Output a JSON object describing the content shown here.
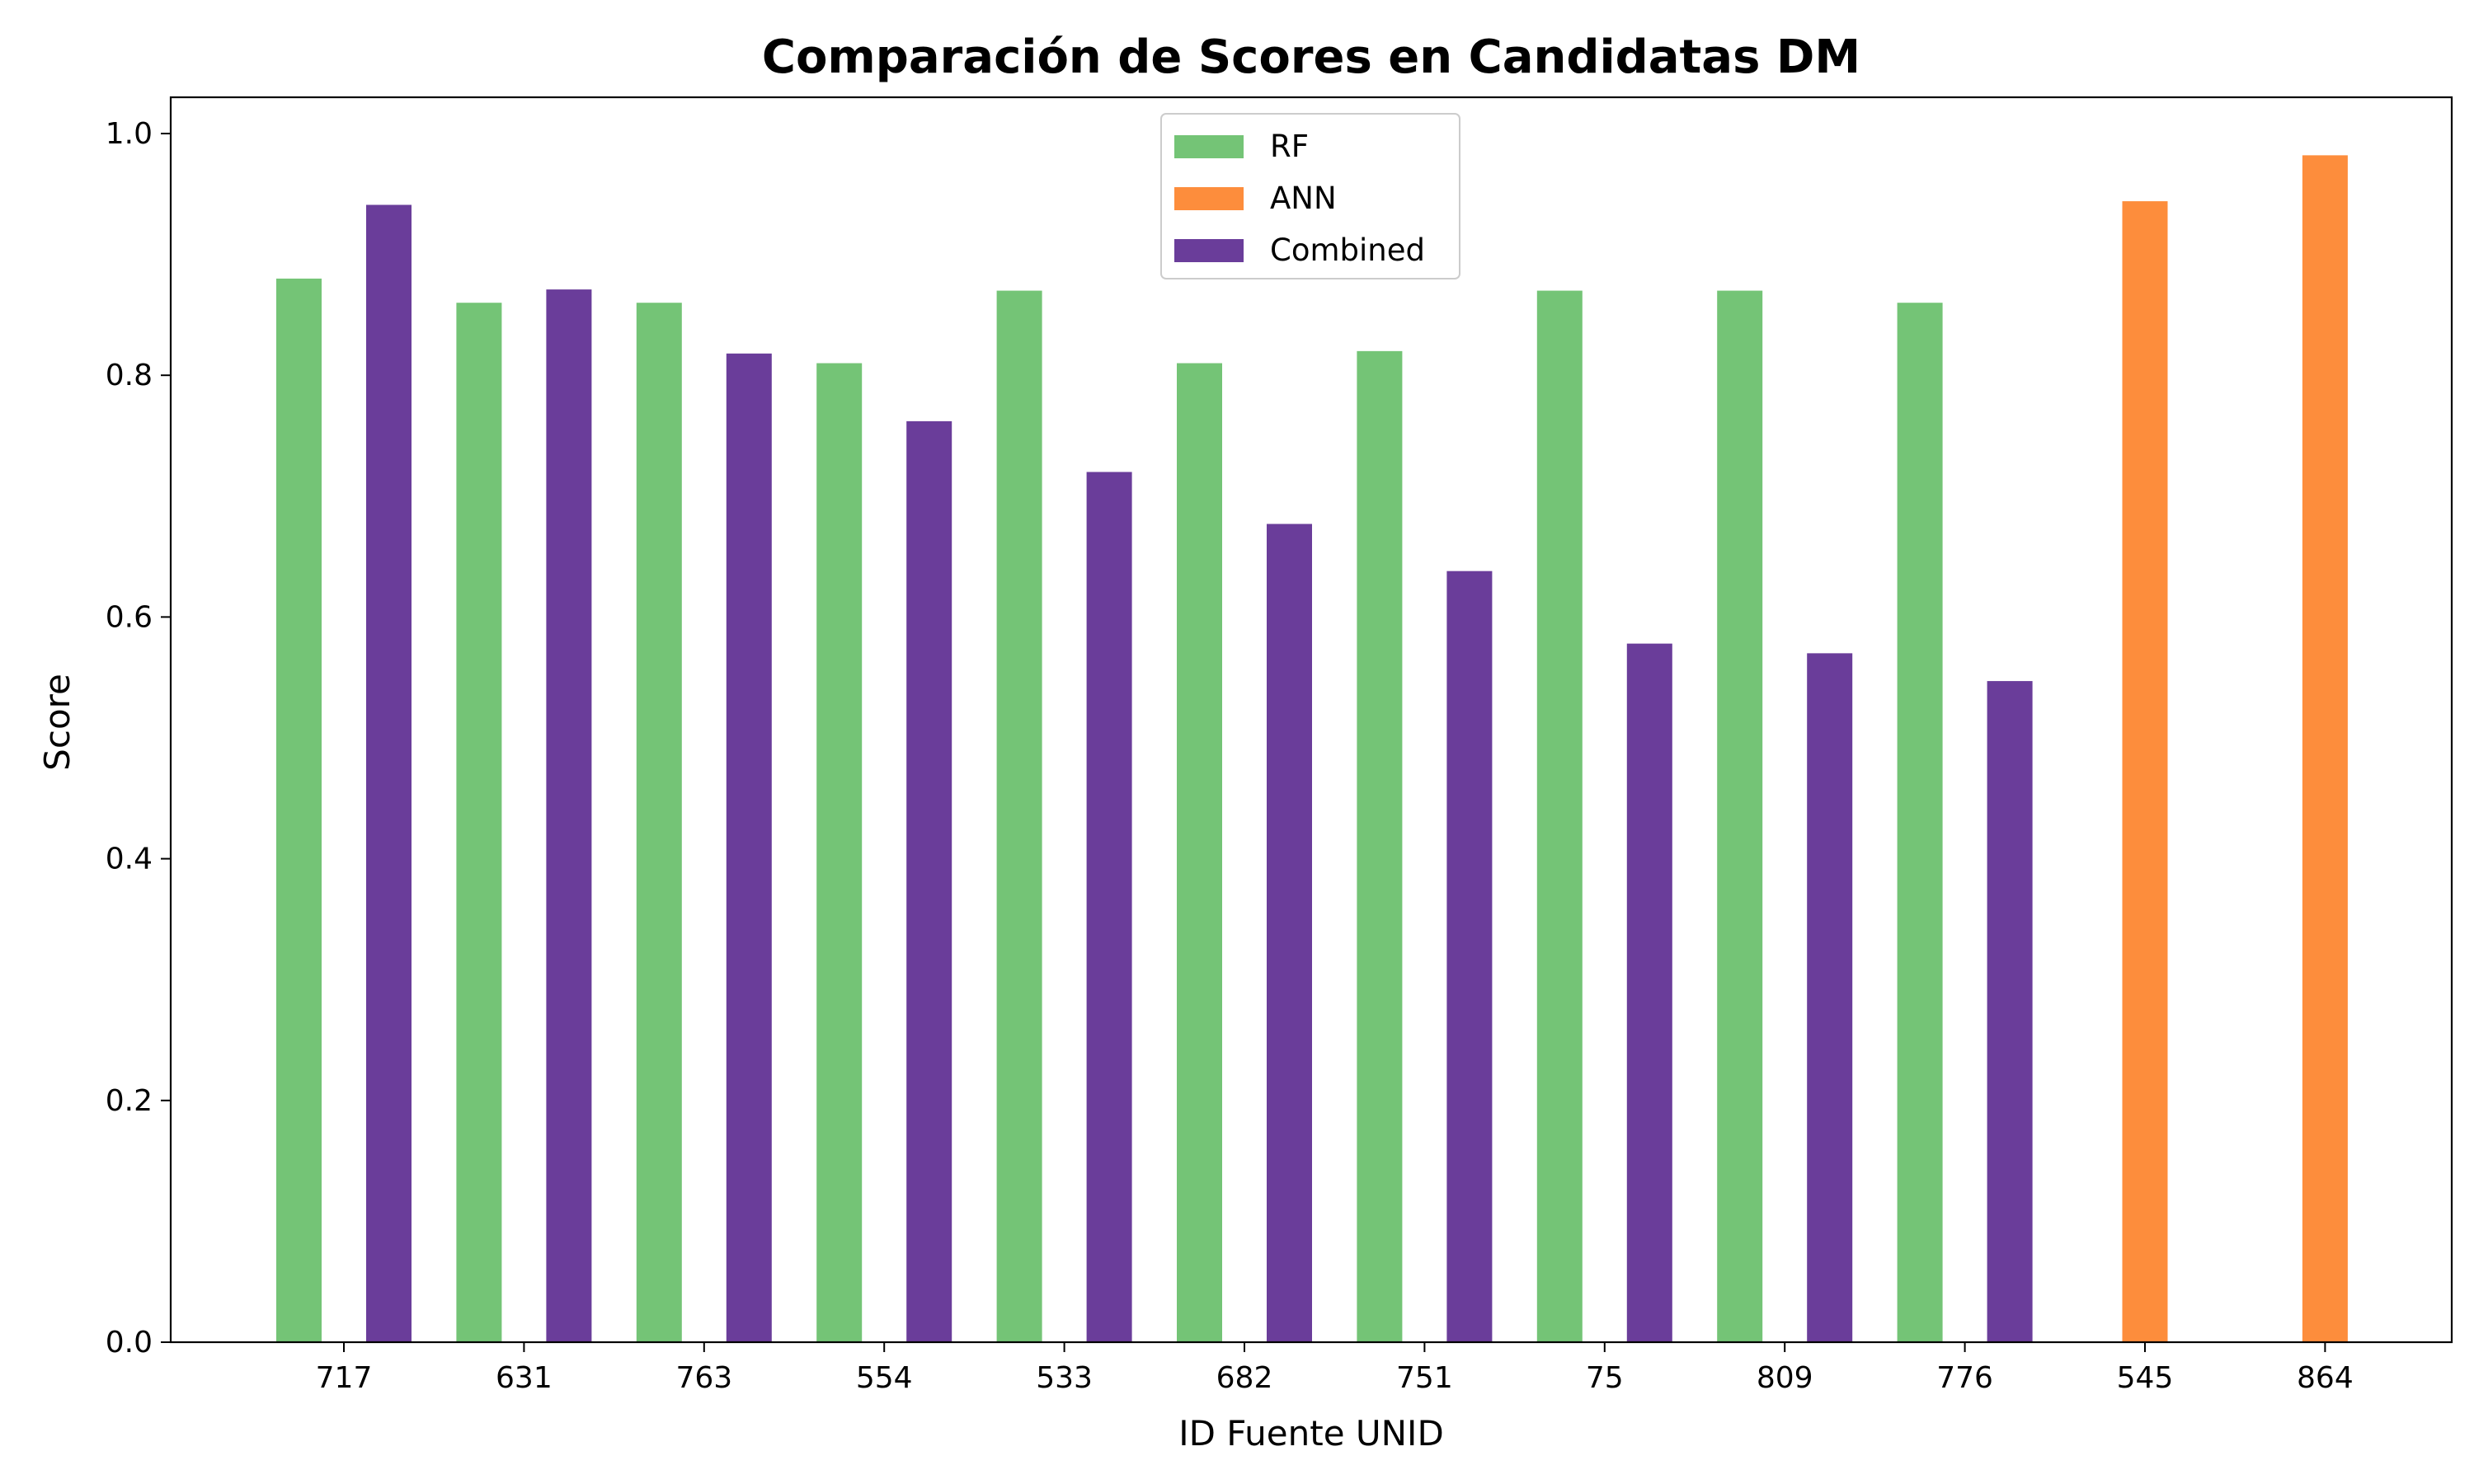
{
  "chart_data": {
    "type": "bar",
    "title": "Comparación de Scores en Candidatas DM",
    "xlabel": "ID Fuente UNID",
    "ylabel": "Score",
    "ylim": [
      0,
      1.03
    ],
    "yticks": [
      "0.0",
      "0.2",
      "0.4",
      "0.6",
      "0.8",
      "1.0"
    ],
    "categories": [
      "717",
      "631",
      "763",
      "554",
      "533",
      "682",
      "751",
      "75",
      "809",
      "776",
      "545",
      "864"
    ],
    "series": [
      {
        "name": "RF",
        "color": "#74c476",
        "values": [
          0.88,
          0.86,
          0.86,
          0.81,
          0.87,
          0.81,
          0.82,
          0.87,
          0.87,
          0.86,
          null,
          null
        ]
      },
      {
        "name": "ANN",
        "color": "#fd8d3c",
        "values": [
          null,
          null,
          null,
          null,
          null,
          null,
          null,
          null,
          null,
          null,
          0.944,
          0.982
        ]
      },
      {
        "name": "Combined",
        "color": "#6a3d9a",
        "values": [
          0.941,
          0.871,
          0.818,
          0.762,
          0.72,
          0.677,
          0.638,
          0.578,
          0.57,
          0.547,
          null,
          null
        ]
      }
    ],
    "legend_position": "top-center",
    "grid": false
  }
}
